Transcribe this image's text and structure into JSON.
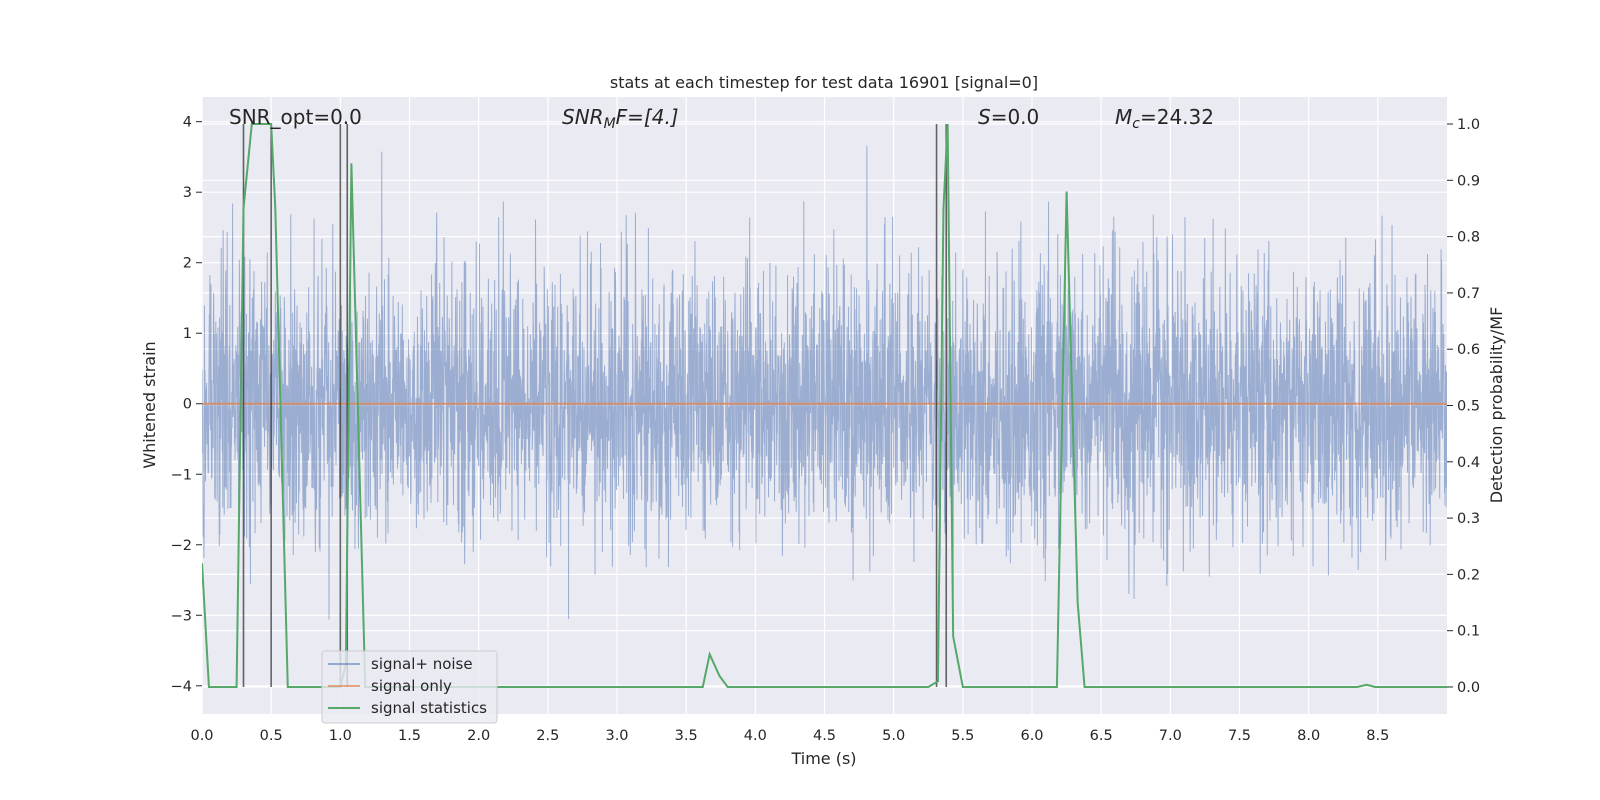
{
  "chart_data": {
    "type": "line",
    "title": "stats at each timestep for test data 16901 [signal=0]",
    "xlabel": "Time (s)",
    "ylabel": "Whitened strain",
    "y2label": "Detection probability/MF",
    "xlim": [
      0.0,
      9.0
    ],
    "ylim": [
      -4.4,
      4.35
    ],
    "y2lim": [
      -0.048,
      1.048
    ],
    "x_ticks": [
      "0.0",
      "0.5",
      "1.0",
      "1.5",
      "2.0",
      "2.5",
      "3.0",
      "3.5",
      "4.0",
      "4.5",
      "5.0",
      "5.5",
      "6.0",
      "6.5",
      "7.0",
      "7.5",
      "8.0",
      "8.5"
    ],
    "y_ticks": [
      "4",
      "3",
      "2",
      "1",
      "0",
      "−1",
      "−2",
      "−3",
      "−4"
    ],
    "y2_ticks": [
      "1.0",
      "0.9",
      "0.8",
      "0.7",
      "0.6",
      "0.5",
      "0.4",
      "0.3",
      "0.2",
      "0.1",
      "0.0"
    ],
    "annotations": {
      "snr_opt": "SNR_opt=0.0",
      "snr_mf_main": "SNR",
      "snr_mf_sub": "M",
      "snr_mf_rest": "F=[4.]",
      "s_italic": "S",
      "s_rest": "=0.0",
      "mc_main": "M",
      "mc_sub": "c",
      "mc_rest": "=24.32"
    },
    "legend": {
      "position": "lower-left",
      "entries": [
        "signal+ noise",
        "signal only",
        "signal statistics"
      ]
    },
    "series": [
      {
        "label_index": 0,
        "kind": "noise",
        "sigma": 0.95,
        "peak_max": 4.0,
        "peak_min": -4.0
      },
      {
        "label_index": 1,
        "kind": "flat",
        "value": 0.0
      },
      {
        "label_index": 2,
        "kind": "statistics",
        "x": [
          0.0,
          0.05,
          0.25,
          0.3,
          0.36,
          0.5,
          0.53,
          0.62,
          1.0,
          1.04,
          1.08,
          1.18,
          1.3,
          2.0,
          3.62,
          3.67,
          3.74,
          3.8,
          4.0,
          5.25,
          5.32,
          5.36,
          5.39,
          5.43,
          5.5,
          6.0,
          6.18,
          6.25,
          6.33,
          6.38,
          7.0,
          8.35,
          8.42,
          8.48,
          9.0
        ],
        "y": [
          0.22,
          0.0,
          0.0,
          0.85,
          1.0,
          1.0,
          0.85,
          0.0,
          0.0,
          0.04,
          0.93,
          0.0,
          0.0,
          0.0,
          0.0,
          0.058,
          0.02,
          0.0,
          0.0,
          0.0,
          0.01,
          0.85,
          1.0,
          0.09,
          0.0,
          0.0,
          0.0,
          0.88,
          0.15,
          0.0,
          0.0,
          0.0,
          0.004,
          0.0,
          0.0
        ]
      }
    ],
    "vertical_lines_x": [
      0.3,
      0.5,
      1.0,
      1.05,
      5.31,
      5.38
    ],
    "colors": {
      "plot_bg": "#eaeaf2",
      "grid": "#ffffff",
      "noise": "#4c72b0",
      "signal_only": "#dd8452",
      "statistics": "#55a868",
      "vline": "#333333",
      "text": "#262626"
    },
    "grid": true
  }
}
